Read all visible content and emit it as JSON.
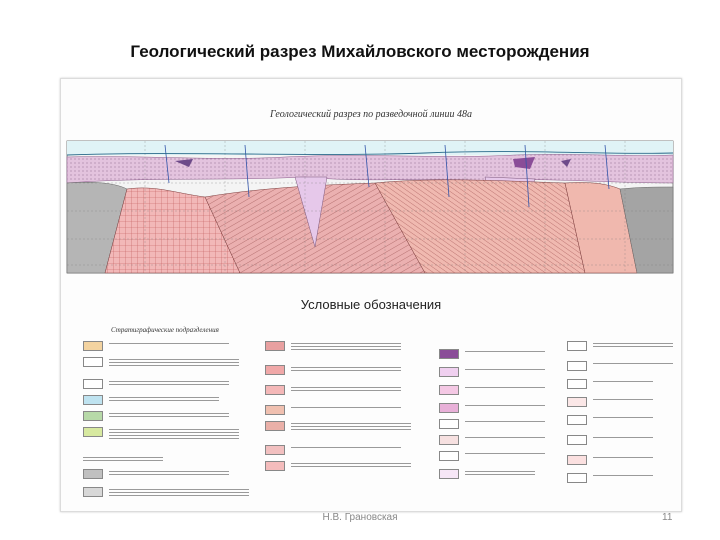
{
  "slide": {
    "title": "Геологический разрез Михайловского месторождения",
    "author": "Н.В. Грановская",
    "page_number": "11"
  },
  "figure": {
    "section_title": "Геологический разрез по разведочной линии 48а",
    "legend_title": "Условные обозначения",
    "legend_left_heading": "Стратиграфические подразделения",
    "colors": {
      "sky": "#dff3f6",
      "lilac": "#e9c6e6",
      "pink": "#e8a6a6",
      "salmon": "#f2c2b4",
      "gray": "#a9a9a9",
      "violet": "#8a4d98",
      "blue": "#6a8cc8",
      "orange": "#f3d3a0"
    }
  }
}
